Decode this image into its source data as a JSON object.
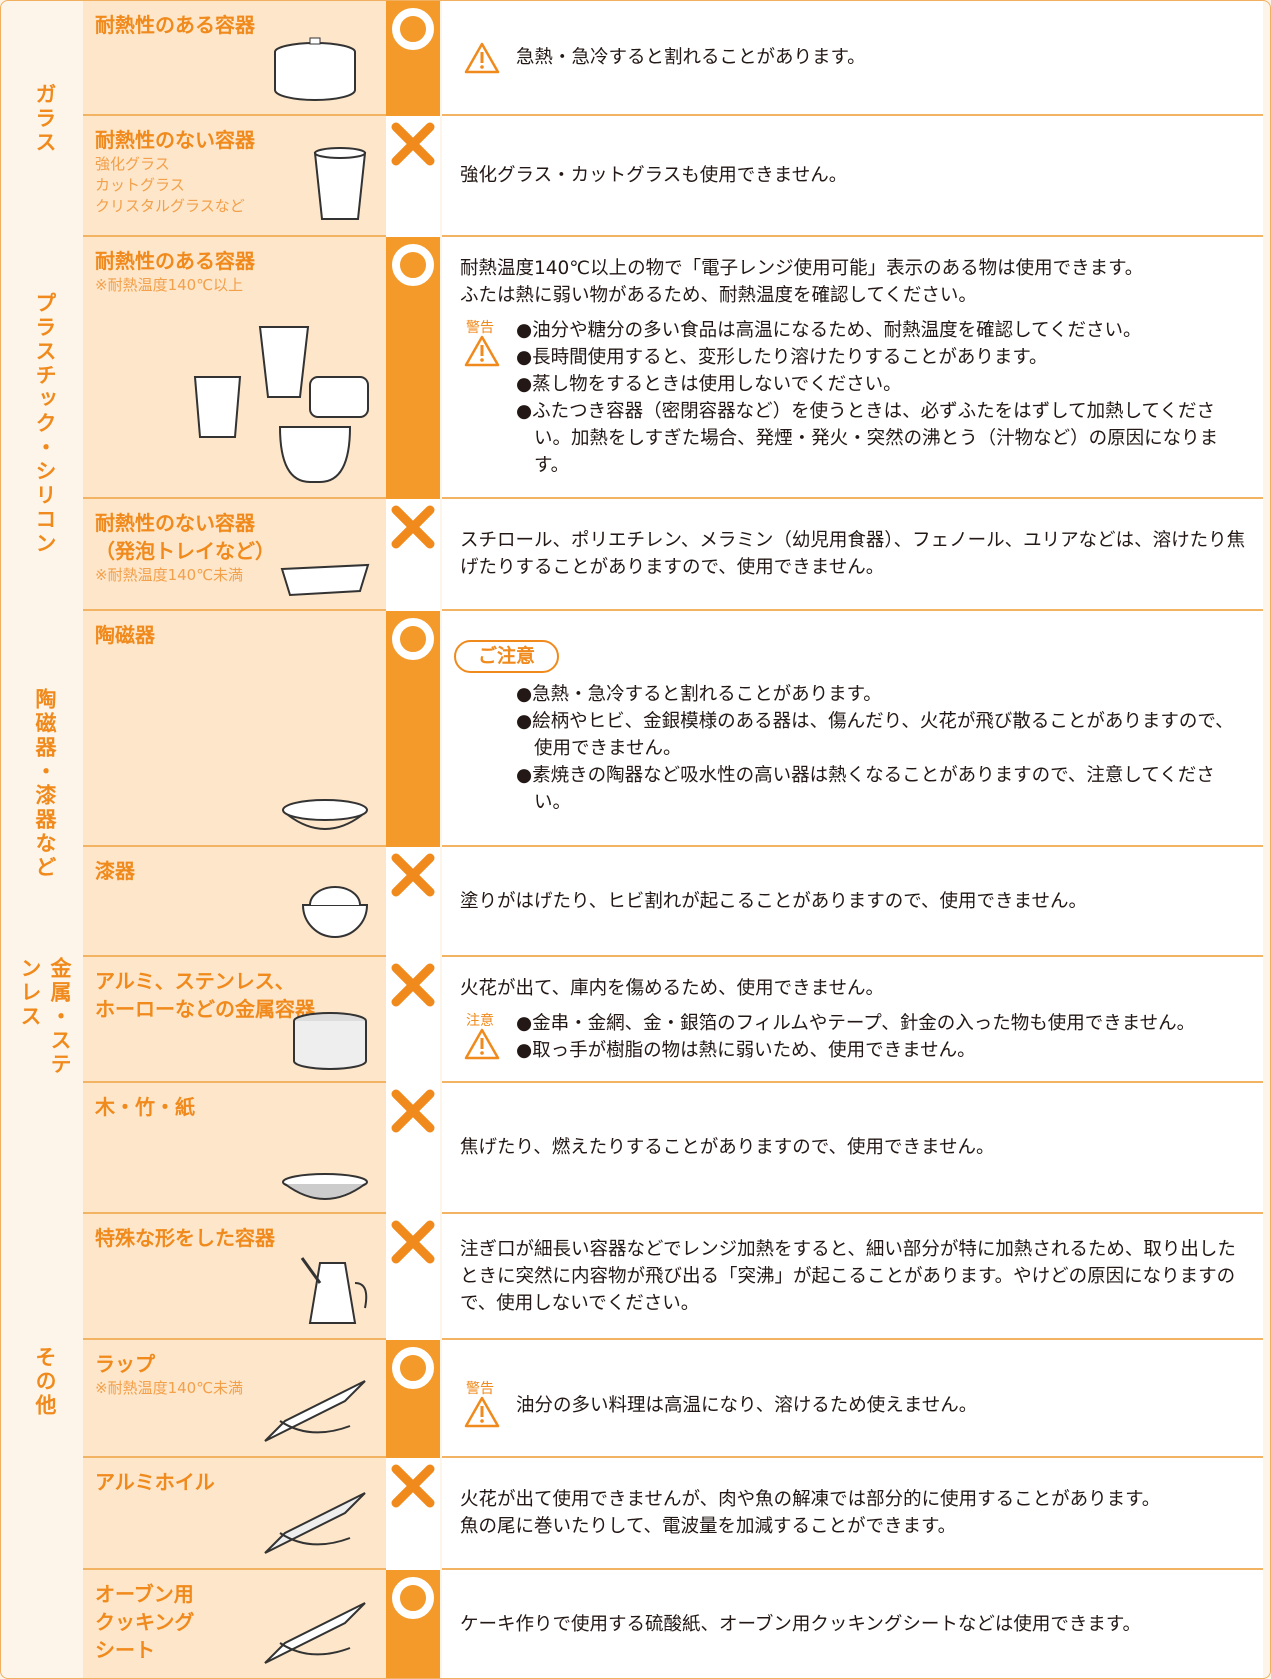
{
  "groups": [
    {
      "label": "ガラス",
      "items": [
        {
          "name": [
            "耐熱性のある容器"
          ],
          "ok": true,
          "blocks": [
            {
              "caution": true,
              "lines": [
                "急熱・急冷すると割れることがあります。"
              ]
            }
          ]
        },
        {
          "name": [
            "耐熱性のない容器"
          ],
          "notes": [
            "強化グラス",
            "カットグラス",
            "クリスタルグラスなど"
          ],
          "ok": false,
          "blocks": [
            {
              "lines": [
                "強化グラス・カットグラスも使用できません。"
              ]
            }
          ]
        }
      ]
    },
    {
      "label": "プラスチック・シリコン",
      "items": [
        {
          "name": [
            "耐熱性のある容器"
          ],
          "notes": [
            "※耐熱温度140℃以上"
          ],
          "ok": true,
          "blocks": [
            {
              "lines": [
                "耐熱温度140℃以上の物で「電子レンジ使用可能」表示のある物は使用できます。",
                "ふたは熱に弱い物があるため、耐熱温度を確認してください。"
              ]
            },
            {
              "label": "警告",
              "caution": true,
              "bullets": [
                "●油分や糖分の多い食品は高温になるため、耐熱温度を確認してください。",
                "●長時間使用すると、変形したり溶けたりすることがあります。",
                "●蒸し物をするときは使用しないでください。",
                "●ふたつき容器（密閉容器など）を使うときは、必ずふたをはずして加熱してください。加熱をしすぎた場合、発煙・発火・突然の沸とう（汁物など）の原因になります。"
              ]
            }
          ]
        },
        {
          "name": [
            "耐熱性のない容器",
            "（発泡トレイなど）"
          ],
          "notes": [
            "※耐熱温度140℃未満"
          ],
          "ok": false,
          "blocks": [
            {
              "lines": [
                "スチロール、ポリエチレン、メラミン（幼児用食器）、フェノール、ユリアなどは、溶けたり焦げたりすることがありますので、使用できません。"
              ]
            }
          ]
        }
      ]
    },
    {
      "label": "陶磁器・漆器など",
      "items": [
        {
          "name": [
            "陶磁器"
          ],
          "ok": true,
          "blocks": [
            {
              "badge": "ご注意",
              "bullets": [
                "●急熱・急冷すると割れることがあります。",
                "●絵柄やヒビ、金銀模様のある器は、傷んだり、火花が飛び散ることがありますので、使用できません。",
                "●素焼きの陶器など吸水性の高い器は熱くなることがありますので、注意してください。"
              ]
            }
          ]
        },
        {
          "name": [
            "漆器"
          ],
          "ok": false,
          "blocks": [
            {
              "lines": [
                "塗りがはげたり、ヒビ割れが起こることがありますので、使用できません。"
              ]
            }
          ]
        }
      ]
    },
    {
      "label": "金属・ステンレス",
      "items": [
        {
          "name": [
            "アルミ、ステンレス、",
            "ホーローなどの金属容器"
          ],
          "ok": false,
          "blocks": [
            {
              "lines": [
                "火花が出て、庫内を傷めるため、使用できません。"
              ]
            },
            {
              "label": "注意",
              "caution": true,
              "bullets": [
                "●金串・金網、金・銀箔のフィルムやテープ、針金の入った物も使用できません。",
                "●取っ手が樹脂の物は熱に弱いため、使用できません。"
              ]
            }
          ]
        }
      ]
    },
    {
      "label": "その他",
      "items": [
        {
          "name": [
            "木・竹・紙"
          ],
          "ok": false,
          "blocks": [
            {
              "lines": [
                "焦げたり、燃えたりすることがありますので、使用できません。"
              ]
            }
          ]
        },
        {
          "name": [
            "特殊な形をした容器"
          ],
          "ok": false,
          "blocks": [
            {
              "lines": [
                "注ぎ口が細長い容器などでレンジ加熱をすると、細い部分が特に加熱されるため、取り出したときに突然に内容物が飛び出る「突沸」が起こることがあります。やけどの原因になりますので、使用しないでください。"
              ]
            }
          ]
        },
        {
          "name": [
            "ラップ"
          ],
          "notes": [
            "※耐熱温度140℃未満"
          ],
          "ok": true,
          "blocks": [
            {
              "label": "警告",
              "caution": true,
              "lines": [
                "油分の多い料理は高温になり、溶けるため使えません。"
              ]
            }
          ]
        },
        {
          "name": [
            "アルミホイル"
          ],
          "ok": false,
          "blocks": [
            {
              "lines": [
                "火花が出て使用できませんが、肉や魚の解凍では部分的に使用することがあります。",
                "魚の尾に巻いたりして、電波量を加減することができます。"
              ]
            }
          ]
        },
        {
          "name": [
            "オーブン用",
            "クッキング",
            "シート"
          ],
          "ok": true,
          "blocks": [
            {
              "lines": [
                "ケーキ作りで使用する硫酸紙、オーブン用クッキングシートなどは使用できます。"
              ]
            }
          ]
        }
      ]
    }
  ]
}
